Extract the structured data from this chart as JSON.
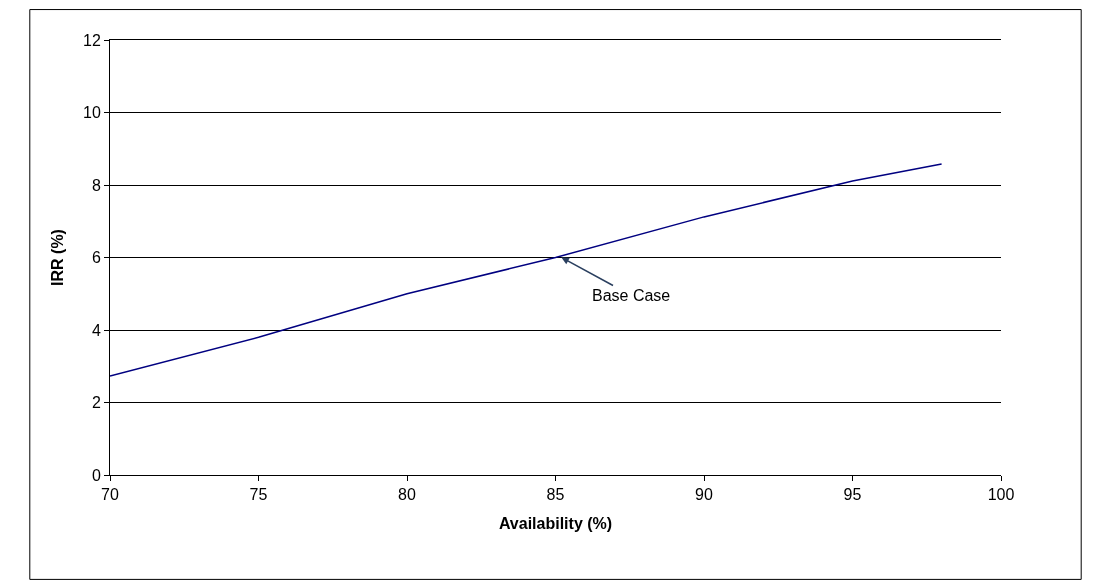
{
  "chart_data": {
    "type": "line",
    "xlabel": "Availability (%)",
    "ylabel": "IRR (%)",
    "x": [
      70,
      75,
      80,
      85,
      90,
      95,
      98
    ],
    "series": [
      {
        "color": "#000080",
        "values": [
          2.73,
          3.8,
          5.0,
          6.0,
          7.12,
          8.11,
          8.58
        ]
      }
    ],
    "xlim": [
      70,
      100
    ],
    "xticks": [
      70,
      75,
      80,
      85,
      90,
      95,
      100
    ],
    "ylim": [
      0,
      12
    ],
    "yticks": [
      0,
      2,
      4,
      6,
      8,
      10,
      12
    ],
    "grid": "y",
    "marker": "none",
    "line_style": "solid",
    "annotations": [
      {
        "text": "Base Case",
        "x": 85.2,
        "y": 6.0
      }
    ]
  }
}
